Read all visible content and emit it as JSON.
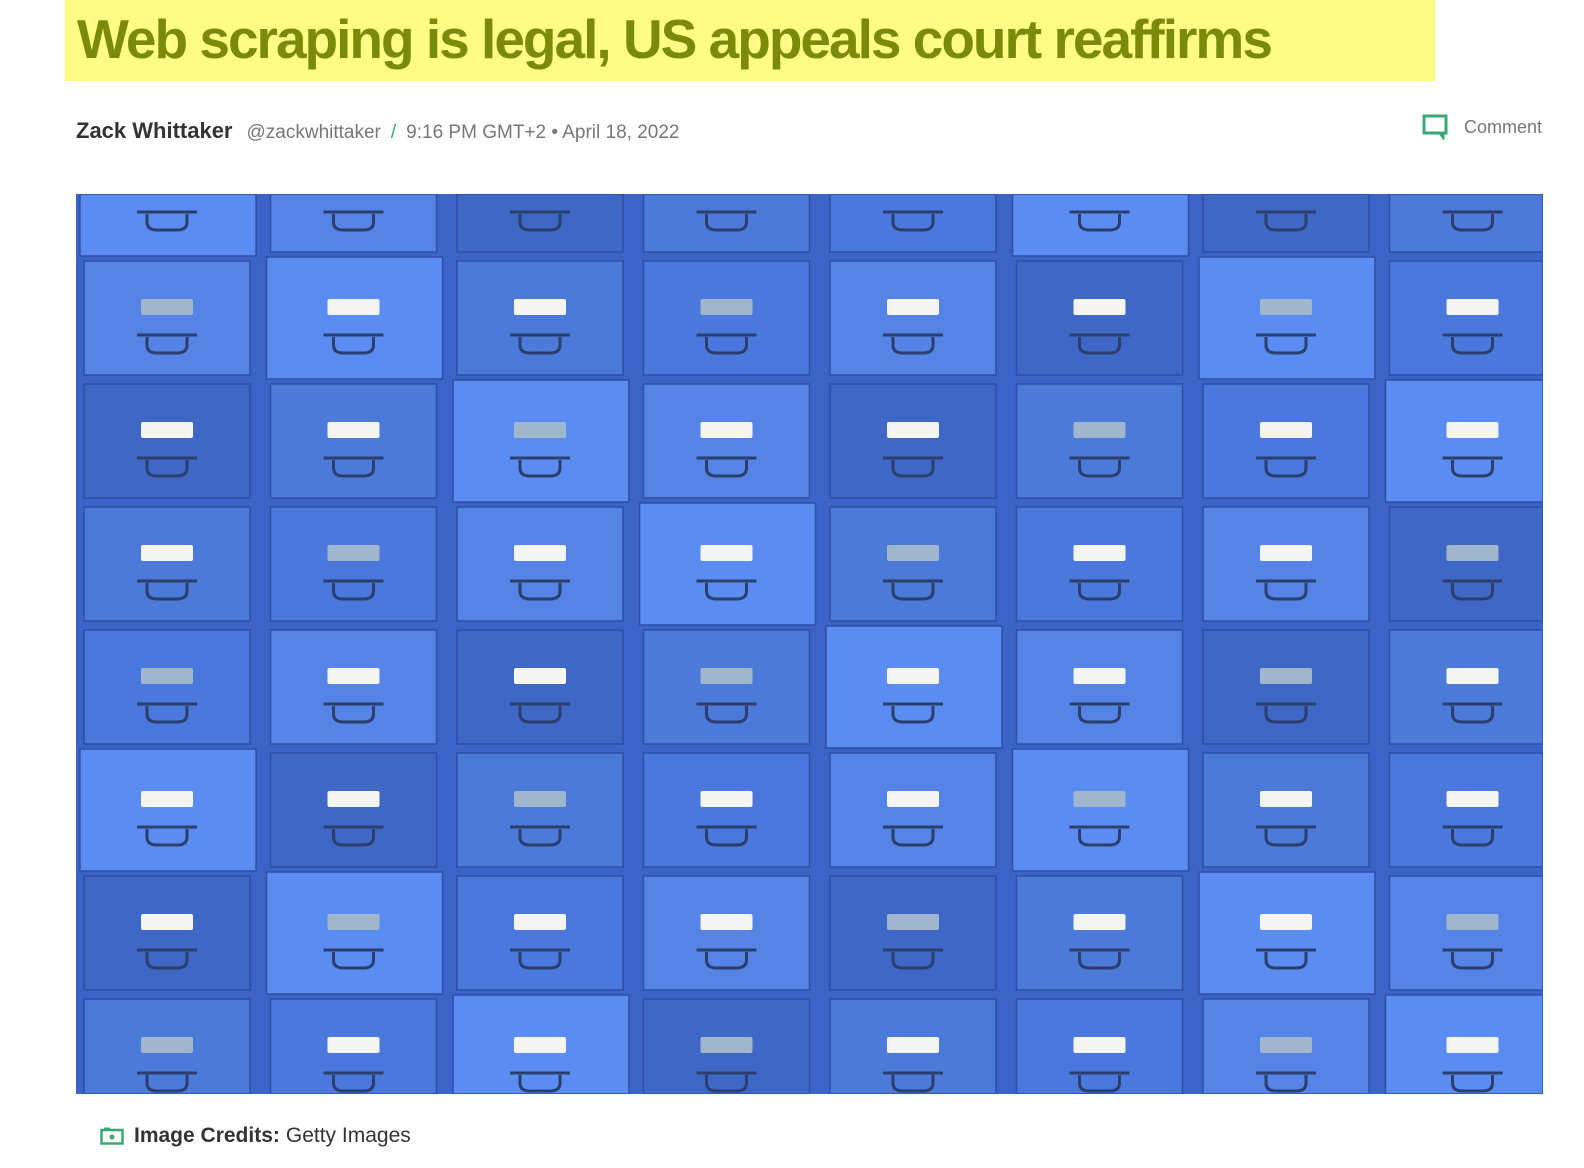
{
  "article": {
    "title": "Web scraping is legal, US appeals court reaffirms",
    "highlight_color": "#fdfd86",
    "title_color": "#7b8a0a"
  },
  "byline": {
    "author": "Zack Whittaker",
    "handle": "@zackwhittaker",
    "separator": "/",
    "datetime": "9:16 PM GMT+2 • April 18, 2022"
  },
  "comment": {
    "label": "Comment",
    "icon": "comment-bubble-icon"
  },
  "hero_image": {
    "description_icon": "filing-cabinets-photo",
    "color": "#3c64c8"
  },
  "caption": {
    "icon": "camera-icon",
    "label": "Image Credits:",
    "value": "Getty Images"
  }
}
